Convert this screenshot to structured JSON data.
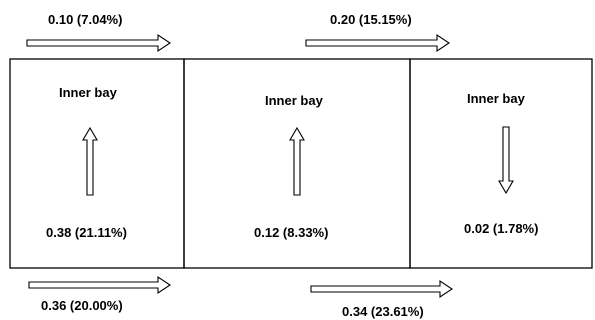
{
  "top_flows": [
    {
      "label": "0.10 (7.04%)",
      "direction": "right"
    },
    {
      "label": "0.20 (15.15%)",
      "direction": "right"
    }
  ],
  "bottom_flows": [
    {
      "label": "0.36 (20.00%)",
      "direction": "right"
    },
    {
      "label": "0.34 (23.61%)",
      "direction": "right"
    }
  ],
  "boxes": [
    {
      "title": "Inner bay",
      "value": "0.38 (21.11%)",
      "arrow_direction": "up"
    },
    {
      "title": "Inner bay",
      "value": "0.12 (8.33%)",
      "arrow_direction": "up"
    },
    {
      "title": "Inner bay",
      "value": "0.02 (1.78%)",
      "arrow_direction": "down"
    }
  ],
  "colors": {
    "line": "#000000",
    "background": "#ffffff"
  }
}
